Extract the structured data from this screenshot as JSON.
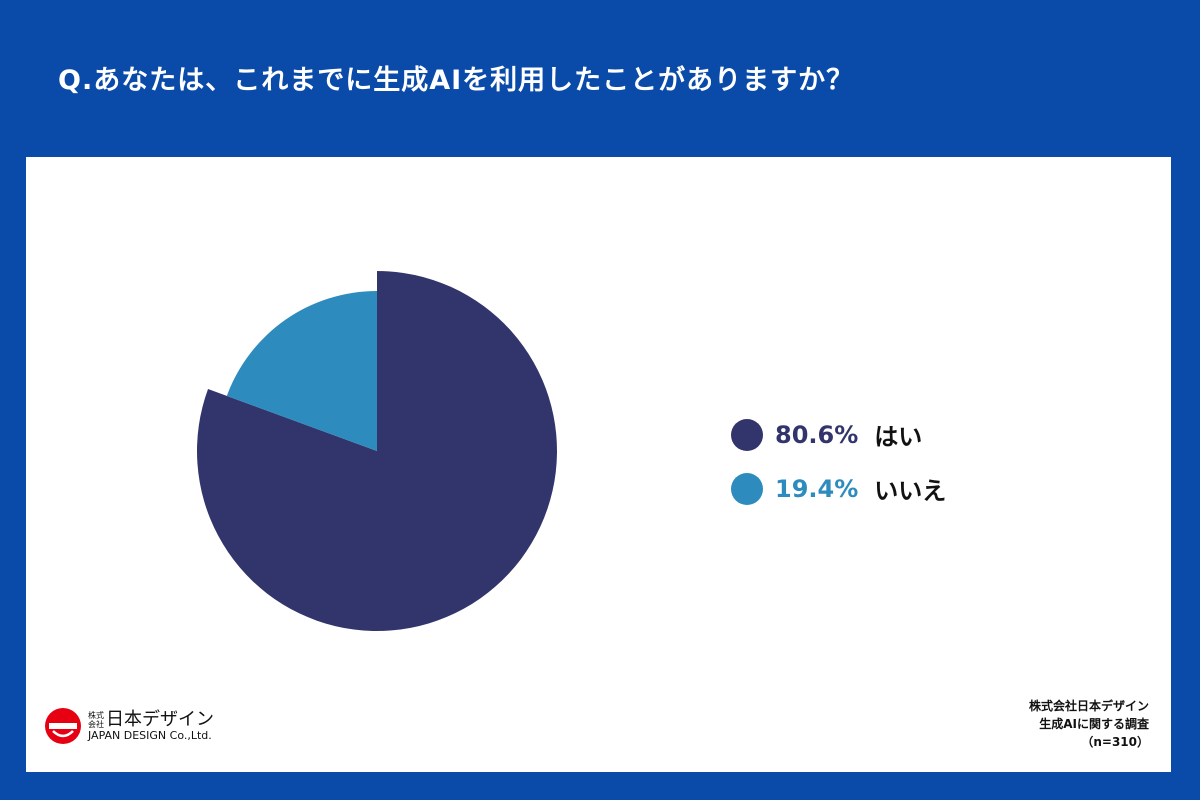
{
  "title": "Q.あなたは、これまでに生成AIを利用したことがありますか？",
  "chart_data": {
    "type": "pie",
    "title": "",
    "slices": [
      {
        "label": "はい",
        "value": 80.6,
        "value_label": "80.6%",
        "color": "#32356b"
      },
      {
        "label": "いいえ",
        "value": 19.4,
        "value_label": "19.4%",
        "color": "#2e8bbd"
      }
    ],
    "legend_position": "right"
  },
  "logo": {
    "jp_small": "株式会社",
    "jp": "日本デザイン",
    "en": "JAPAN DESIGN Co.,Ltd.",
    "color": "#e60012"
  },
  "source": {
    "line1": "株式会社日本デザイン",
    "line2": "生成AIに関する調査",
    "line3": "（n=310）"
  }
}
